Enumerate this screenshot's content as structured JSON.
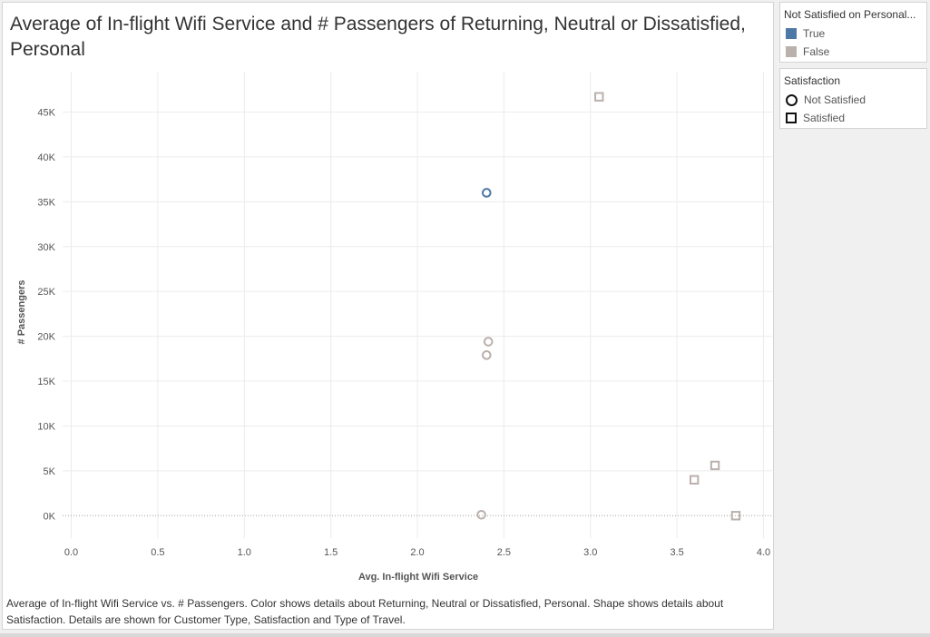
{
  "title": "Average of In-flight Wifi Service and # Passengers of Returning, Neutral or Dissatisfied, Personal",
  "caption": "Average of In-flight Wifi Service vs. # Passengers.  Color shows details about Returning, Neutral or Dissatisfied, Personal.  Shape shows details about Satisfaction.  Details are shown for Customer Type, Satisfaction and Type of Travel.",
  "legend_color": {
    "title": "Not Satisfied on Personal...",
    "items": [
      {
        "label": "True",
        "color": "#4e79a7"
      },
      {
        "label": "False",
        "color": "#bab0ac"
      }
    ]
  },
  "legend_shape": {
    "title": "Satisfaction",
    "items": [
      {
        "label": "Not Satisfied",
        "shape": "circle"
      },
      {
        "label": "Satisfied",
        "shape": "square"
      }
    ]
  },
  "chart_data": {
    "type": "scatter",
    "xlabel": "Avg. In-flight Wifi Service",
    "ylabel": "# Passengers",
    "xlim": [
      -0.05,
      4.05
    ],
    "ylim": [
      -2500,
      49500
    ],
    "x_ticks": [
      0.0,
      0.5,
      1.0,
      1.5,
      2.0,
      2.5,
      3.0,
      3.5,
      4.0
    ],
    "x_tick_labels": [
      "0.0",
      "0.5",
      "1.0",
      "1.5",
      "2.0",
      "2.5",
      "3.0",
      "3.5",
      "4.0"
    ],
    "y_ticks": [
      0,
      5000,
      10000,
      15000,
      20000,
      25000,
      30000,
      35000,
      40000,
      45000
    ],
    "y_tick_labels": [
      "0K",
      "5K",
      "10K",
      "15K",
      "20K",
      "25K",
      "30K",
      "35K",
      "40K",
      "45K"
    ],
    "grid": true,
    "points": [
      {
        "x": 2.4,
        "y": 36000,
        "color_group": "True",
        "shape": "circle"
      },
      {
        "x": 2.41,
        "y": 19400,
        "color_group": "False",
        "shape": "circle"
      },
      {
        "x": 2.4,
        "y": 17900,
        "color_group": "False",
        "shape": "circle"
      },
      {
        "x": 2.37,
        "y": 100,
        "color_group": "False",
        "shape": "circle"
      },
      {
        "x": 3.05,
        "y": 46700,
        "color_group": "False",
        "shape": "square"
      },
      {
        "x": 3.72,
        "y": 5600,
        "color_group": "False",
        "shape": "square"
      },
      {
        "x": 3.6,
        "y": 4000,
        "color_group": "False",
        "shape": "square"
      },
      {
        "x": 3.84,
        "y": 0,
        "color_group": "False",
        "shape": "square"
      }
    ]
  }
}
